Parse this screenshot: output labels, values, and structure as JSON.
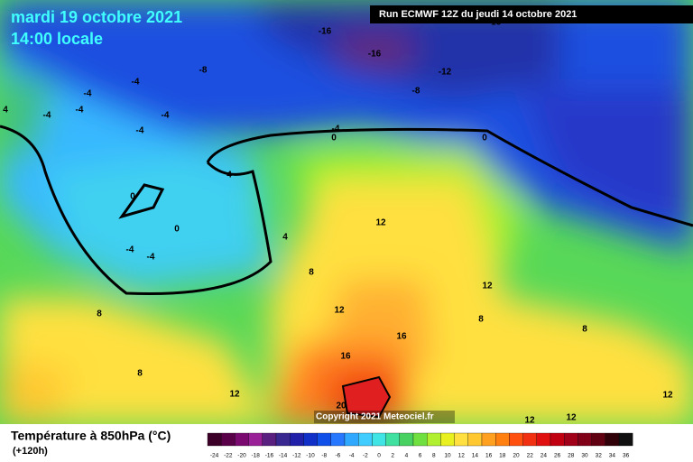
{
  "header": {
    "date": "mardi 19 octobre 2021",
    "time": "14:00 locale",
    "run": "Run ECMWF 12Z du jeudi 14 octobre 2021"
  },
  "copyright": "Copyright 2021 Meteociel.fr",
  "legend": {
    "title": "Température à 850hPa (°C)",
    "lead": "(+120h)",
    "labels": [
      -24,
      -22,
      -20,
      -18,
      -16,
      -14,
      -12,
      -10,
      -8,
      -6,
      -4,
      -2,
      0,
      2,
      4,
      6,
      8,
      10,
      12,
      14,
      16,
      18,
      20,
      22,
      24,
      26,
      28,
      30,
      32,
      34,
      36
    ],
    "colors": [
      "#3c0028",
      "#5a0048",
      "#7a0a70",
      "#9a2098",
      "#5a2080",
      "#382890",
      "#2020a8",
      "#1030c8",
      "#1050e8",
      "#2878ff",
      "#30a8ff",
      "#40ccff",
      "#40e4e4",
      "#40e0a0",
      "#48d060",
      "#70e040",
      "#b0f030",
      "#e8f020",
      "#ffe040",
      "#ffc830",
      "#ffa020",
      "#ff8010",
      "#ff5010",
      "#f03010",
      "#e01010",
      "#c00010",
      "#a00018",
      "#800018",
      "#600010",
      "#300008",
      "#101010"
    ]
  },
  "contour_labels": [
    -16,
    -16,
    -12,
    -8,
    -8,
    -4,
    -4,
    -4,
    4,
    -4,
    -4,
    -4,
    -4,
    0,
    0,
    4,
    0,
    0,
    -4,
    -4,
    4,
    8,
    12,
    12,
    12,
    8,
    16,
    8,
    8,
    16,
    8,
    12,
    20,
    12,
    12,
    12,
    -16
  ]
}
